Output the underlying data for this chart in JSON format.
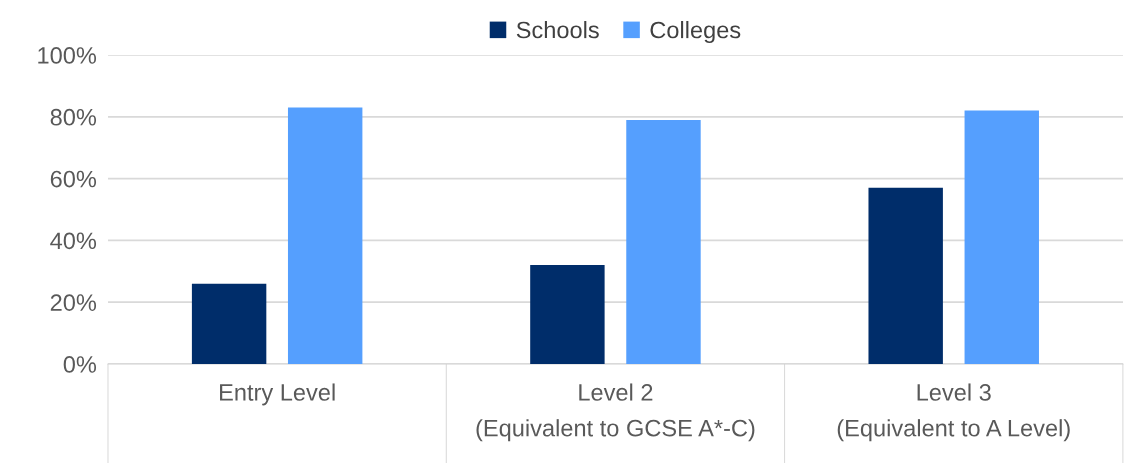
{
  "chart_data": {
    "type": "bar",
    "categories": [
      "Entry Level",
      "Level 2\n(Equivalent to GCSE A*-C)",
      "Level 3\n(Equivalent to A Level)"
    ],
    "series": [
      {
        "name": "Schools",
        "color": "#002d6a",
        "values": [
          26,
          32,
          57
        ]
      },
      {
        "name": "Colleges",
        "color": "#559ffe",
        "values": [
          83,
          79,
          82
        ]
      }
    ],
    "ylim": [
      0,
      100
    ],
    "yticks": [
      {
        "value": 0,
        "label": "0%"
      },
      {
        "value": 20,
        "label": "20%"
      },
      {
        "value": 40,
        "label": "40%"
      },
      {
        "value": 60,
        "label": "60%"
      },
      {
        "value": 80,
        "label": "80%"
      },
      {
        "value": 100,
        "label": "100%"
      }
    ],
    "grid": "y",
    "legend": "top"
  }
}
